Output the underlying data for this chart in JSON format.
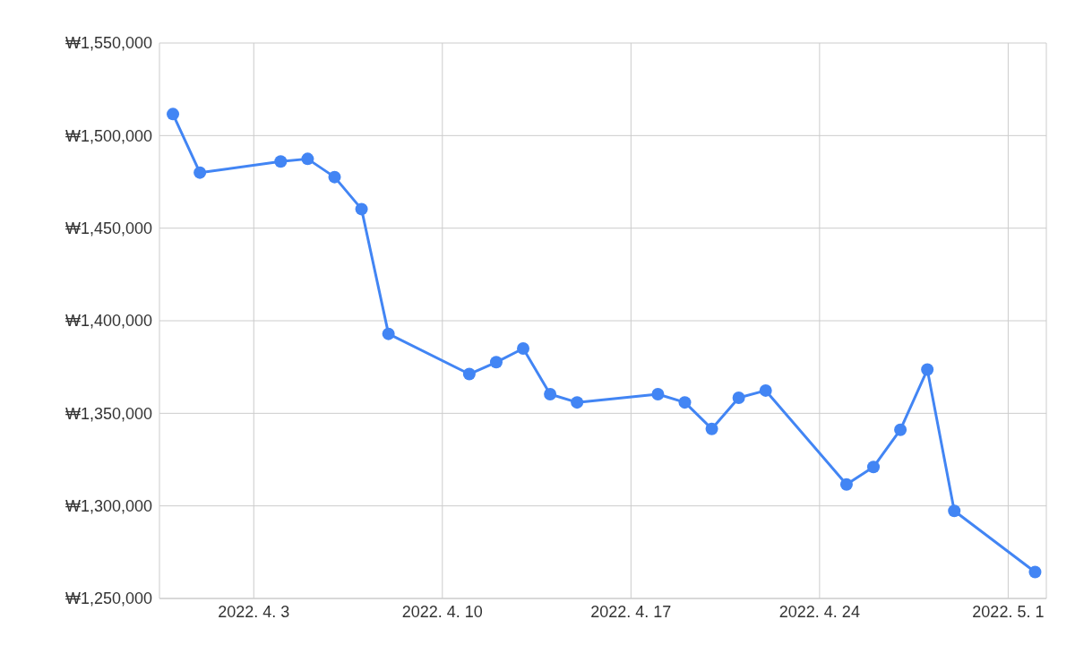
{
  "chart_data": {
    "type": "line",
    "x": [
      "2022-03-31",
      "2022-04-01",
      "2022-04-04",
      "2022-04-05",
      "2022-04-06",
      "2022-04-07",
      "2022-04-08",
      "2022-04-11",
      "2022-04-12",
      "2022-04-13",
      "2022-04-14",
      "2022-04-15",
      "2022-04-18",
      "2022-04-19",
      "2022-04-20",
      "2022-04-21",
      "2022-04-22",
      "2022-04-25",
      "2022-04-26",
      "2022-04-27",
      "2022-04-28",
      "2022-04-29",
      "2022-05-02"
    ],
    "series": [
      {
        "color": "#4285f4",
        "values": [
          1511600,
          1480000,
          1486000,
          1487400,
          1477600,
          1460300,
          1392900,
          1371200,
          1377600,
          1385000,
          1360300,
          1355900,
          1360300,
          1355900,
          1341600,
          1358400,
          1362300,
          1311600,
          1321000,
          1341100,
          1373600,
          1297300,
          1264300
        ]
      }
    ],
    "xlim": [
      "2022-03-30T12:00",
      "2022-05-02T10:00"
    ],
    "xticks": [
      {
        "value": "2022-04-03",
        "label": "2022. 4. 3"
      },
      {
        "value": "2022-04-10",
        "label": "2022. 4. 10"
      },
      {
        "value": "2022-04-17",
        "label": "2022. 4. 17"
      },
      {
        "value": "2022-04-24",
        "label": "2022. 4. 24"
      },
      {
        "value": "2022-05-01",
        "label": "2022. 5. 1"
      }
    ],
    "ylim": [
      1250000,
      1550000
    ],
    "yticks": [
      {
        "value": 1250000,
        "label": "₩1,250,000"
      },
      {
        "value": 1300000,
        "label": "₩1,300,000"
      },
      {
        "value": 1350000,
        "label": "₩1,350,000"
      },
      {
        "value": 1400000,
        "label": "₩1,400,000"
      },
      {
        "value": 1450000,
        "label": "₩1,450,000"
      },
      {
        "value": 1500000,
        "label": "₩1,500,000"
      },
      {
        "value": 1550000,
        "label": "₩1,550,000"
      }
    ],
    "grid": true,
    "marker": "circle",
    "line_style": "solid",
    "legend": false
  }
}
